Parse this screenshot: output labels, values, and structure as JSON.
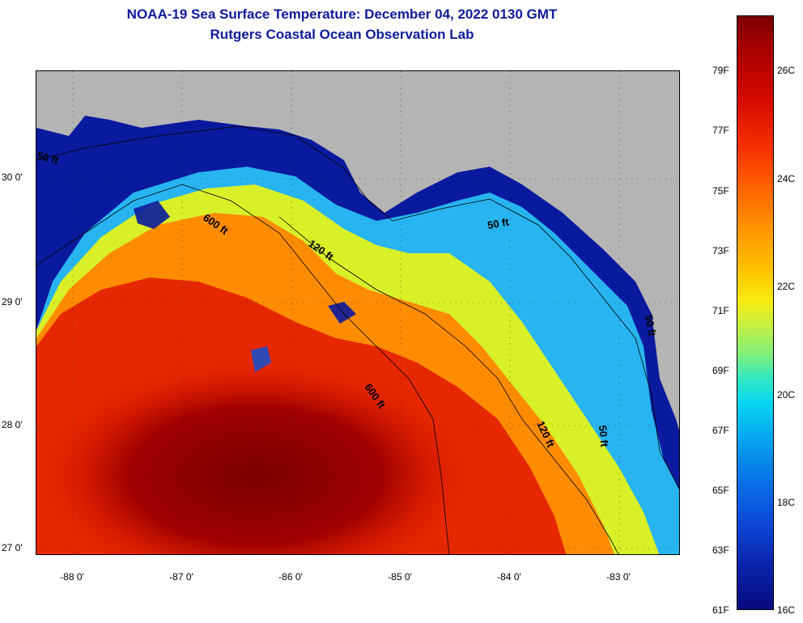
{
  "title": {
    "line1": "NOAA-19 Sea Surface Temperature:  December 04, 2022 0130 GMT",
    "line2": "Rutgers Coastal Ocean Observation Lab"
  },
  "map": {
    "lat_labels": [
      "30 0'",
      "29 0'",
      "28 0'",
      "27 0'"
    ],
    "lon_labels": [
      "-88 0'",
      "-87 0'",
      "-86 0'",
      "-85 0'",
      "-84 0'",
      "-83 0'"
    ],
    "contour_labels": [
      "50 ft",
      "600 ft",
      "120 ft",
      "50 ft",
      "600 ft",
      "120 ft",
      "50 ft",
      "50 ft"
    ],
    "colors": {
      "land": "#b4b4b4",
      "cold": "#0a1a9e",
      "cool": "#28b4f0",
      "mid": "#d8f028",
      "warm": "#ff8c00",
      "hot": "#e62800",
      "hottest": "#8c0000"
    }
  },
  "colorbar": {
    "fahrenheit_labels": [
      "79F",
      "77F",
      "75F",
      "73F",
      "71F",
      "69F",
      "67F",
      "65F",
      "63F",
      "61F"
    ],
    "celsius_labels": [
      "26C",
      "24C",
      "22C",
      "20C",
      "18C",
      "16C"
    ]
  }
}
